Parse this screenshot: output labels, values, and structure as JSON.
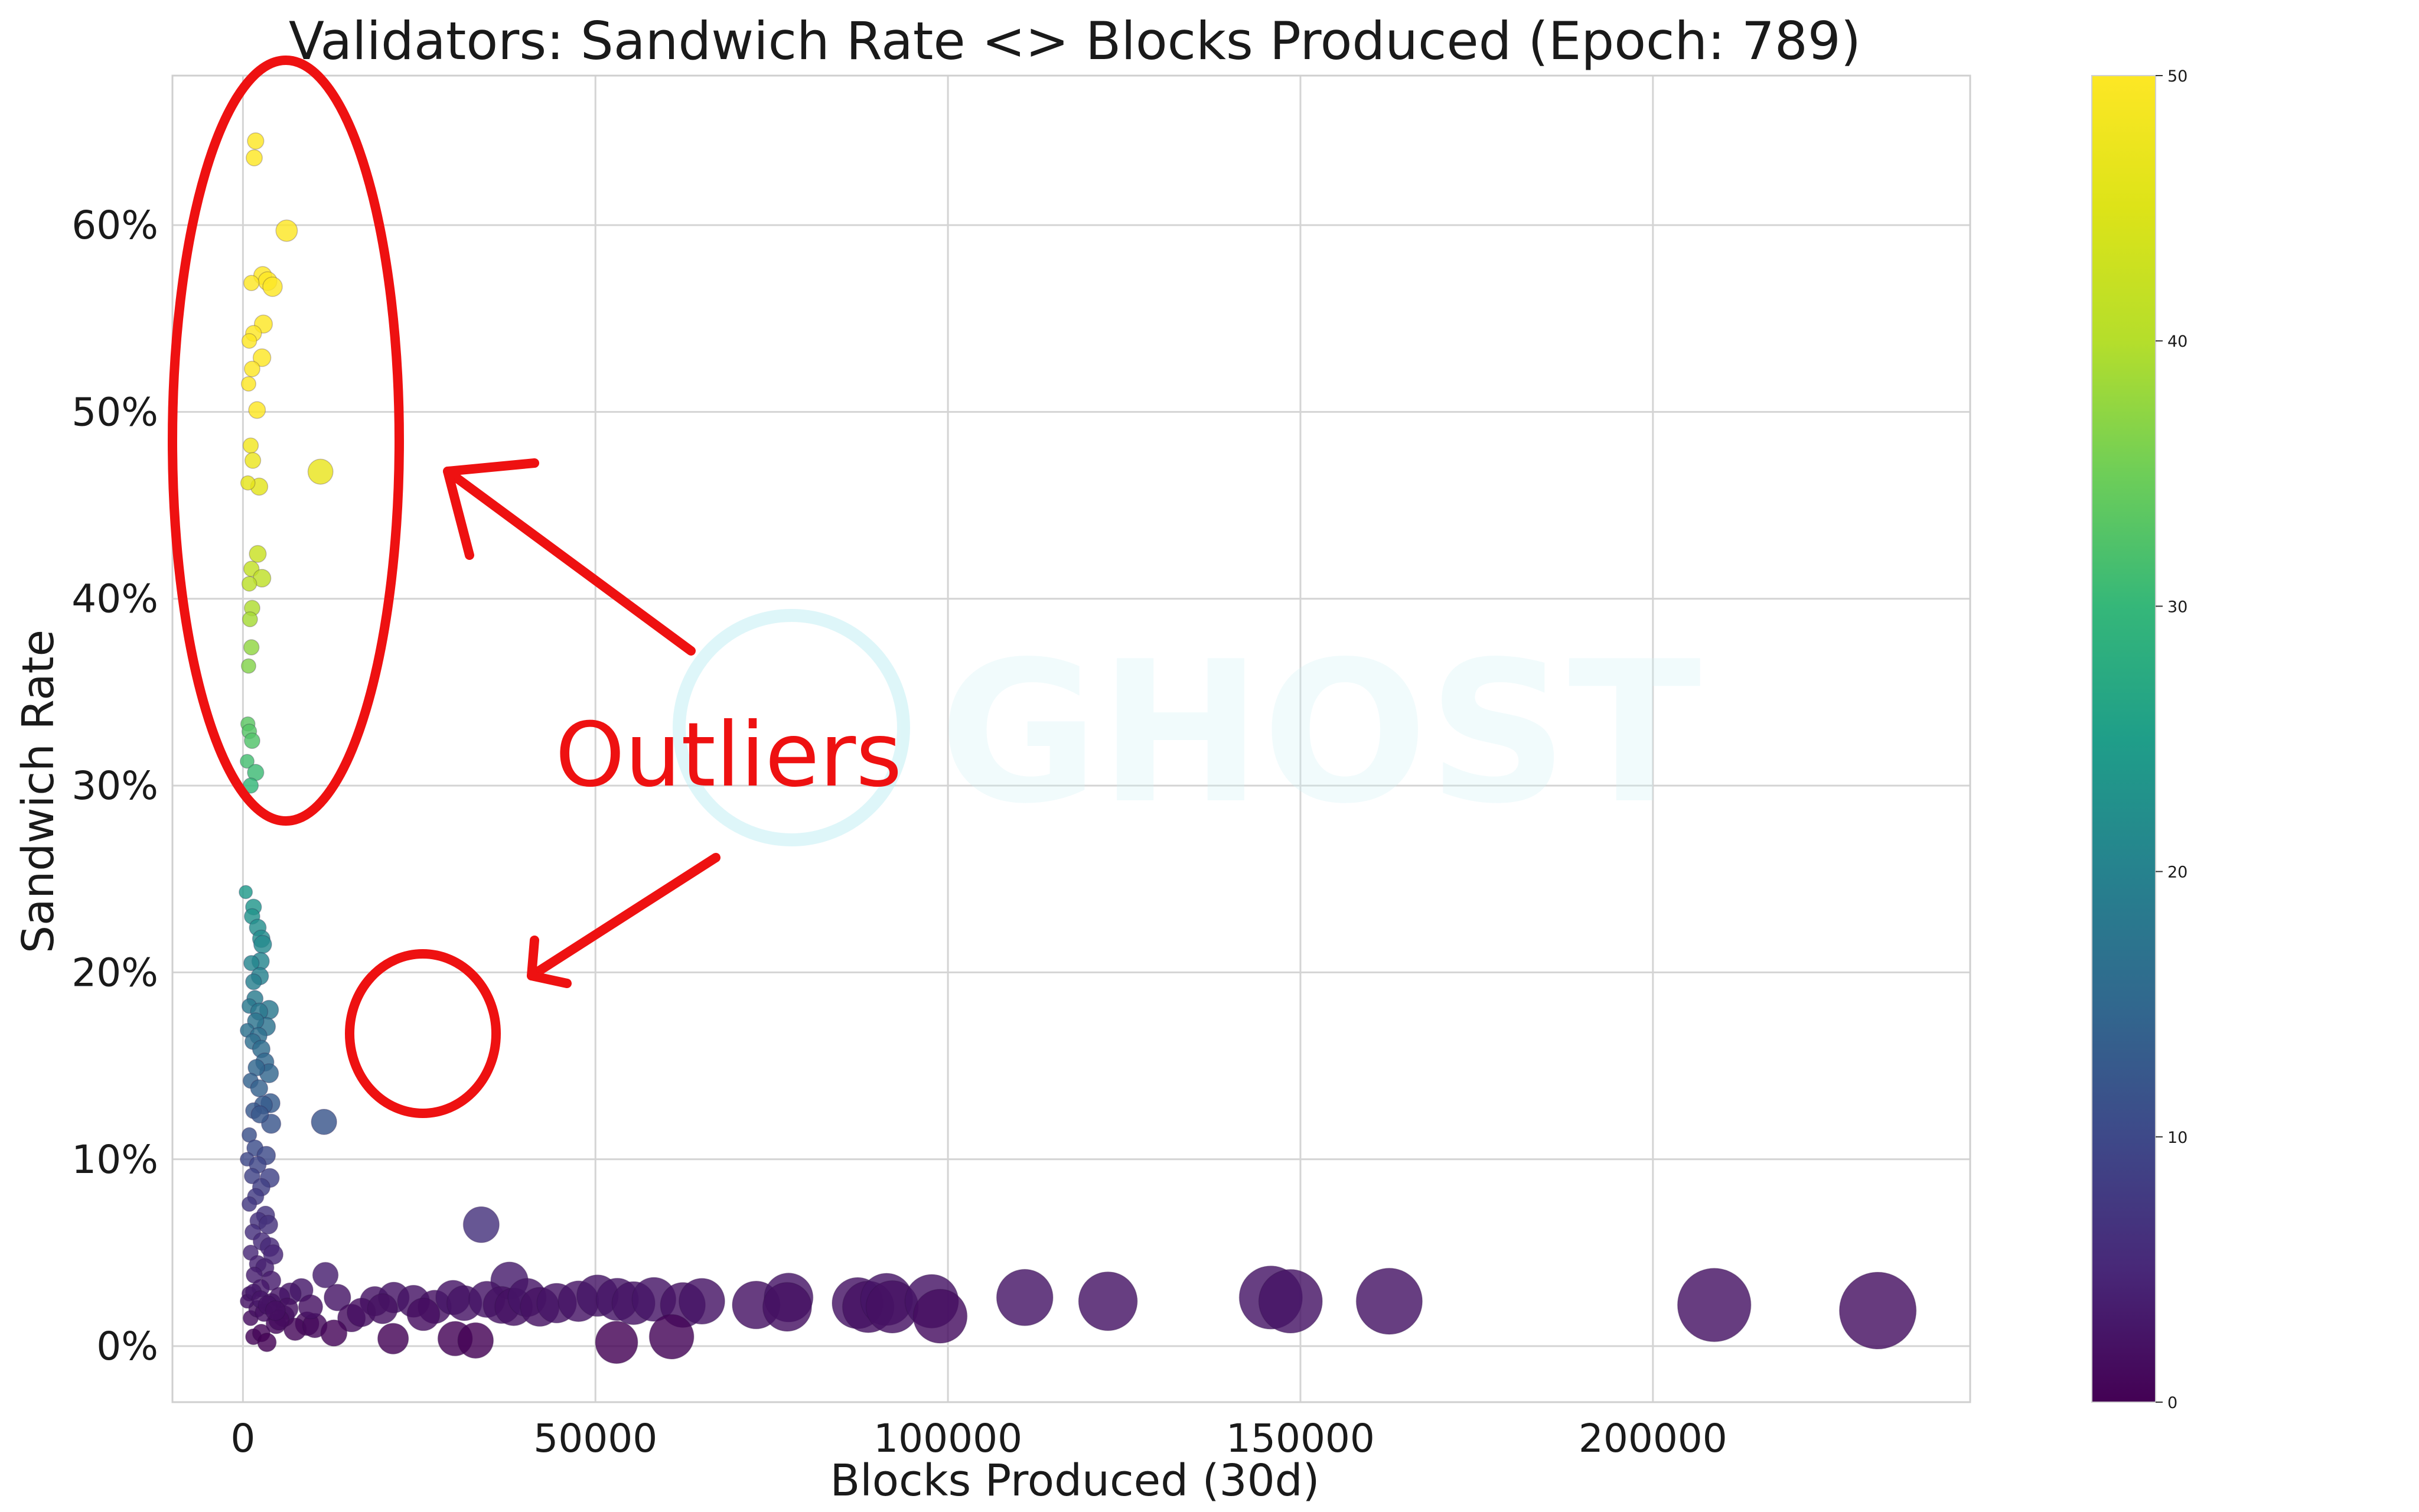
{
  "chart_data": {
    "type": "scatter",
    "title": "Validators: Sandwich Rate <> Blocks Produced (Epoch: 789)",
    "xlabel": "Blocks Produced (30d)",
    "ylabel": "Sandwich Rate",
    "xlim": [
      -10000,
      245000
    ],
    "ylim": [
      -3,
      68
    ],
    "x_ticks": [
      0,
      50000,
      100000,
      150000,
      200000
    ],
    "x_tick_labels": [
      "0",
      "50000",
      "100000",
      "150000",
      "200000"
    ],
    "y_ticks": [
      0,
      10,
      20,
      30,
      40,
      50,
      60
    ],
    "y_tick_labels": [
      "0%",
      "10%",
      "20%",
      "30%",
      "40%",
      "50%",
      "60%"
    ],
    "grid": true,
    "colorbar": {
      "colormap": "viridis",
      "range": [
        0,
        50
      ],
      "ticks": [
        0,
        10,
        20,
        30,
        40,
        50
      ],
      "tick_labels": [
        "0",
        "10",
        "20",
        "30",
        "40",
        "50"
      ]
    },
    "point_size_encodes": "blocks produced",
    "point_color_encodes": "sandwich rate (%)",
    "points": [
      {
        "x": 1800,
        "y": 64.5
      },
      {
        "x": 1600,
        "y": 63.6
      },
      {
        "x": 6200,
        "y": 59.7
      },
      {
        "x": 2800,
        "y": 57.3
      },
      {
        "x": 3500,
        "y": 57.0
      },
      {
        "x": 4200,
        "y": 56.7
      },
      {
        "x": 1200,
        "y": 56.9
      },
      {
        "x": 2900,
        "y": 54.7
      },
      {
        "x": 1500,
        "y": 54.2
      },
      {
        "x": 900,
        "y": 53.8
      },
      {
        "x": 2700,
        "y": 52.9
      },
      {
        "x": 1300,
        "y": 52.3
      },
      {
        "x": 800,
        "y": 51.5
      },
      {
        "x": 2000,
        "y": 50.1
      },
      {
        "x": 1100,
        "y": 48.2
      },
      {
        "x": 1400,
        "y": 47.4
      },
      {
        "x": 11000,
        "y": 46.8
      },
      {
        "x": 2300,
        "y": 46.0
      },
      {
        "x": 700,
        "y": 46.2
      },
      {
        "x": 2100,
        "y": 42.4
      },
      {
        "x": 1200,
        "y": 41.6
      },
      {
        "x": 2700,
        "y": 41.1
      },
      {
        "x": 900,
        "y": 40.8
      },
      {
        "x": 1300,
        "y": 39.5
      },
      {
        "x": 1000,
        "y": 38.9
      },
      {
        "x": 1200,
        "y": 37.4
      },
      {
        "x": 800,
        "y": 36.4
      },
      {
        "x": 700,
        "y": 33.3
      },
      {
        "x": 900,
        "y": 32.9
      },
      {
        "x": 1300,
        "y": 32.4
      },
      {
        "x": 600,
        "y": 31.3
      },
      {
        "x": 1800,
        "y": 30.7
      },
      {
        "x": 1100,
        "y": 30.0
      },
      {
        "x": 400,
        "y": 24.3
      },
      {
        "x": 1500,
        "y": 23.5
      },
      {
        "x": 1300,
        "y": 23.0
      },
      {
        "x": 2100,
        "y": 22.4
      },
      {
        "x": 2600,
        "y": 21.8
      },
      {
        "x": 2800,
        "y": 21.5
      },
      {
        "x": 2500,
        "y": 20.6
      },
      {
        "x": 1200,
        "y": 20.5
      },
      {
        "x": 2400,
        "y": 19.8
      },
      {
        "x": 1500,
        "y": 19.5
      },
      {
        "x": 1700,
        "y": 18.6
      },
      {
        "x": 3700,
        "y": 18.0
      },
      {
        "x": 900,
        "y": 18.2
      },
      {
        "x": 2300,
        "y": 17.9
      },
      {
        "x": 3300,
        "y": 17.1
      },
      {
        "x": 1800,
        "y": 17.4
      },
      {
        "x": 600,
        "y": 16.9
      },
      {
        "x": 2200,
        "y": 16.6
      },
      {
        "x": 1400,
        "y": 16.3
      },
      {
        "x": 2600,
        "y": 15.9
      },
      {
        "x": 3100,
        "y": 15.2
      },
      {
        "x": 3700,
        "y": 14.6
      },
      {
        "x": 1900,
        "y": 14.9
      },
      {
        "x": 1100,
        "y": 14.2
      },
      {
        "x": 2300,
        "y": 13.8
      },
      {
        "x": 3900,
        "y": 13.0
      },
      {
        "x": 2900,
        "y": 12.9
      },
      {
        "x": 1500,
        "y": 12.6
      },
      {
        "x": 4000,
        "y": 11.9
      },
      {
        "x": 11500,
        "y": 12.0
      },
      {
        "x": 2400,
        "y": 12.4
      },
      {
        "x": 900,
        "y": 11.3
      },
      {
        "x": 1700,
        "y": 10.6
      },
      {
        "x": 3300,
        "y": 10.2
      },
      {
        "x": 600,
        "y": 10.0
      },
      {
        "x": 2100,
        "y": 9.7
      },
      {
        "x": 1300,
        "y": 9.1
      },
      {
        "x": 3800,
        "y": 9.0
      },
      {
        "x": 2600,
        "y": 8.5
      },
      {
        "x": 1800,
        "y": 8.0
      },
      {
        "x": 900,
        "y": 7.6
      },
      {
        "x": 3200,
        "y": 7.0
      },
      {
        "x": 2200,
        "y": 6.7
      },
      {
        "x": 3600,
        "y": 6.5
      },
      {
        "x": 1400,
        "y": 6.1
      },
      {
        "x": 33800,
        "y": 6.5
      },
      {
        "x": 2700,
        "y": 5.6
      },
      {
        "x": 3800,
        "y": 5.3
      },
      {
        "x": 1100,
        "y": 5.0
      },
      {
        "x": 4300,
        "y": 4.9
      },
      {
        "x": 2100,
        "y": 4.4
      },
      {
        "x": 3100,
        "y": 4.2
      },
      {
        "x": 11700,
        "y": 3.8
      },
      {
        "x": 37800,
        "y": 3.5
      },
      {
        "x": 1600,
        "y": 3.8
      },
      {
        "x": 4000,
        "y": 3.5
      },
      {
        "x": 8300,
        "y": 3.0
      },
      {
        "x": 2500,
        "y": 3.1
      },
      {
        "x": 6700,
        "y": 2.8
      },
      {
        "x": 900,
        "y": 2.8
      },
      {
        "x": 5200,
        "y": 2.6
      },
      {
        "x": 13400,
        "y": 2.6
      },
      {
        "x": 18700,
        "y": 2.4
      },
      {
        "x": 21400,
        "y": 2.6
      },
      {
        "x": 24200,
        "y": 2.4
      },
      {
        "x": 27200,
        "y": 2.1
      },
      {
        "x": 29800,
        "y": 2.6
      },
      {
        "x": 31400,
        "y": 2.3
      },
      {
        "x": 34600,
        "y": 2.5
      },
      {
        "x": 36700,
        "y": 2.2
      },
      {
        "x": 38400,
        "y": 2.1
      },
      {
        "x": 40300,
        "y": 2.6
      },
      {
        "x": 42100,
        "y": 2.1
      },
      {
        "x": 44500,
        "y": 2.3
      },
      {
        "x": 47600,
        "y": 2.4
      },
      {
        "x": 50300,
        "y": 2.7
      },
      {
        "x": 53100,
        "y": 2.5
      },
      {
        "x": 55400,
        "y": 2.3
      },
      {
        "x": 58300,
        "y": 2.5
      },
      {
        "x": 62400,
        "y": 2.2
      },
      {
        "x": 65100,
        "y": 2.4
      },
      {
        "x": 72800,
        "y": 2.2
      },
      {
        "x": 77400,
        "y": 2.6
      },
      {
        "x": 77200,
        "y": 2.1
      },
      {
        "x": 87200,
        "y": 2.3
      },
      {
        "x": 88700,
        "y": 2.1
      },
      {
        "x": 91300,
        "y": 2.5
      },
      {
        "x": 92100,
        "y": 2.1
      },
      {
        "x": 97700,
        "y": 2.4
      },
      {
        "x": 98900,
        "y": 1.6
      },
      {
        "x": 110900,
        "y": 2.6
      },
      {
        "x": 122700,
        "y": 2.4
      },
      {
        "x": 145800,
        "y": 2.6
      },
      {
        "x": 148600,
        "y": 2.4
      },
      {
        "x": 162600,
        "y": 2.4
      },
      {
        "x": 208700,
        "y": 2.2
      },
      {
        "x": 231900,
        "y": 1.9
      },
      {
        "x": 15400,
        "y": 1.5
      },
      {
        "x": 9100,
        "y": 1.2
      },
      {
        "x": 21300,
        "y": 0.4
      },
      {
        "x": 30100,
        "y": 0.4
      },
      {
        "x": 33000,
        "y": 0.3
      },
      {
        "x": 53000,
        "y": 0.2
      },
      {
        "x": 60800,
        "y": 0.5
      },
      {
        "x": 1500,
        "y": 0.5
      },
      {
        "x": 2600,
        "y": 0.7
      },
      {
        "x": 3400,
        "y": 0.2
      },
      {
        "x": 4700,
        "y": 1.2
      },
      {
        "x": 5800,
        "y": 1.6
      },
      {
        "x": 7400,
        "y": 0.9
      },
      {
        "x": 10200,
        "y": 1.1
      },
      {
        "x": 12900,
        "y": 0.7
      },
      {
        "x": 6300,
        "y": 2.0
      },
      {
        "x": 9600,
        "y": 2.1
      },
      {
        "x": 16800,
        "y": 1.8
      },
      {
        "x": 19800,
        "y": 2.0
      },
      {
        "x": 25600,
        "y": 1.7
      },
      {
        "x": 1100,
        "y": 1.5
      },
      {
        "x": 2000,
        "y": 2.0
      },
      {
        "x": 3000,
        "y": 1.8
      },
      {
        "x": 4000,
        "y": 2.3
      },
      {
        "x": 5100,
        "y": 1.4
      },
      {
        "x": 600,
        "y": 2.4
      },
      {
        "x": 1500,
        "y": 2.9
      },
      {
        "x": 2500,
        "y": 2.5
      },
      {
        "x": 3500,
        "y": 2.2
      },
      {
        "x": 4600,
        "y": 1.9
      }
    ],
    "annotations": [
      {
        "text": "Outliers"
      }
    ],
    "watermark": "GHOST"
  }
}
